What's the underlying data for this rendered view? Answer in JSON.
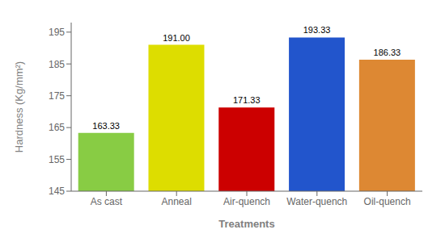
{
  "chart_data": {
    "type": "bar",
    "categories": [
      "As cast",
      "Anneal",
      "Air-quench",
      "Water-quench",
      "Oil-quench"
    ],
    "values": [
      163.33,
      191.0,
      171.33,
      193.33,
      186.33
    ],
    "value_labels": [
      "163.33",
      "191.00",
      "171.33",
      "193.33",
      "186.33"
    ],
    "data_labels": true,
    "colors": [
      "#88CC44",
      "#DDDD00",
      "#CC0000",
      "#2255CC",
      "#DD8833"
    ],
    "xlabel": "Treatments",
    "ylabel": "Hardness (Kg/mm²)",
    "ylim": [
      145,
      198
    ],
    "yticks": [
      145,
      155,
      165,
      175,
      185,
      195
    ]
  }
}
